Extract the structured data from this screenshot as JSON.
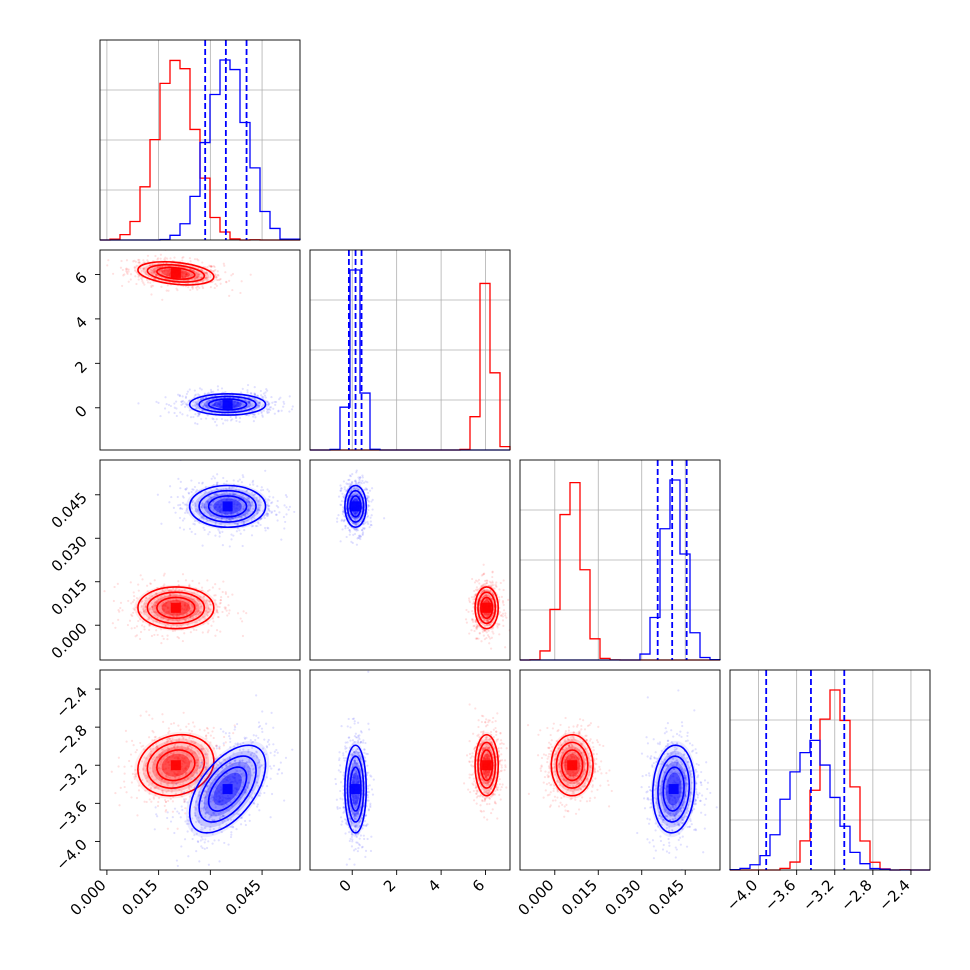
{
  "chart_data": {
    "type": "corner",
    "colors": {
      "red": "#ff0000",
      "blue": "#0000ff"
    },
    "params": [
      {
        "id": "p0",
        "range": [
          -0.002,
          0.056
        ],
        "ticks": [
          0.0,
          0.015,
          0.03,
          0.045
        ],
        "tick_labels": [
          "0.000",
          "0.015",
          "0.030",
          "0.045"
        ]
      },
      {
        "id": "p1",
        "range": [
          -1.9,
          7.1
        ],
        "ticks": [
          0,
          2,
          4,
          6
        ],
        "tick_labels": [
          "0",
          "2",
          "4",
          "6"
        ]
      },
      {
        "id": "p2",
        "range": [
          -0.012,
          0.057
        ],
        "ticks": [
          0.0,
          0.015,
          0.03,
          0.045
        ],
        "tick_labels": [
          "0.000",
          "0.015",
          "0.030",
          "0.045"
        ]
      },
      {
        "id": "p3",
        "range": [
          -4.3,
          -2.2
        ],
        "ticks": [
          -4.0,
          -3.6,
          -3.2,
          -2.8,
          -2.4
        ],
        "tick_labels": [
          "−4.0",
          "−3.6",
          "−3.2",
          "−2.8",
          "−2.4"
        ]
      }
    ],
    "series": [
      {
        "name": "",
        "color": "red",
        "mean": [
          0.02,
          6.05,
          0.006,
          -3.2
        ],
        "std": [
          0.0055,
          0.26,
          0.0036,
          0.16
        ],
        "corr": [
          [
            0,
            1,
            -0.3
          ],
          [
            0,
            3,
            0.15
          ]
        ]
      },
      {
        "name": "",
        "color": "blue",
        "mean": [
          0.035,
          0.15,
          0.041,
          -3.45
        ],
        "std": [
          0.0055,
          0.24,
          0.0036,
          0.23
        ],
        "corr": [
          [
            0,
            3,
            0.55
          ],
          [
            2,
            3,
            0.1
          ]
        ]
      }
    ],
    "quantile_lines": [
      {
        "param": 0,
        "values": [
          0.0285,
          0.0345,
          0.0405
        ]
      },
      {
        "param": 1,
        "values": [
          -0.15,
          0.15,
          0.42
        ]
      },
      {
        "param": 2,
        "values": [
          0.0355,
          0.0405,
          0.0455
        ]
      },
      {
        "param": 3,
        "values": [
          -3.92,
          -3.45,
          -3.1
        ]
      }
    ],
    "grid": true
  }
}
